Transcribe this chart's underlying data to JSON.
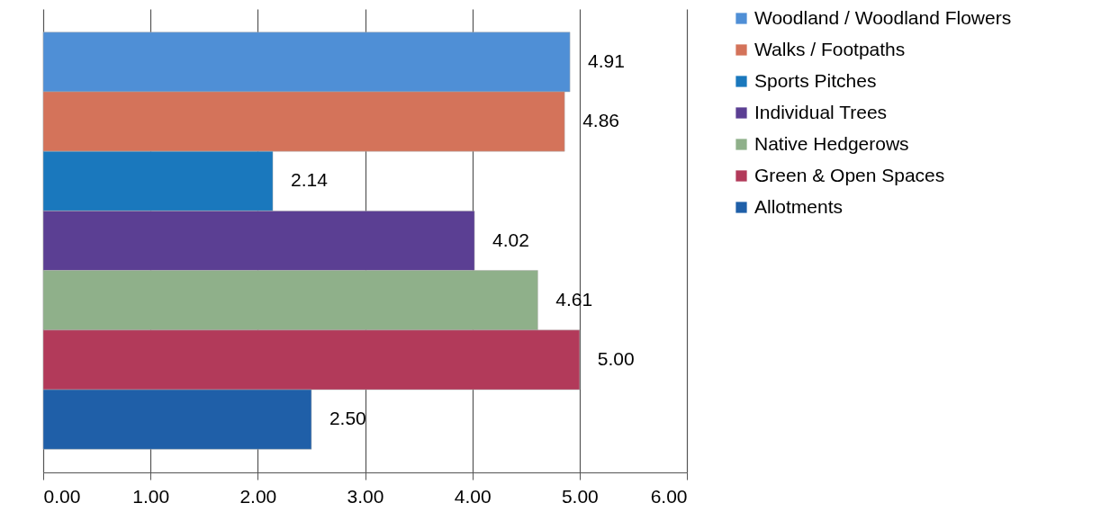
{
  "chart_data": {
    "type": "bar",
    "orientation": "horizontal",
    "categories": [
      null
    ],
    "series": [
      {
        "name": "Woodland / Woodland Flowers",
        "color": "#4f8fd6",
        "values": [
          4.91
        ],
        "value_labels": [
          "4.91"
        ]
      },
      {
        "name": "Walks / Footpaths",
        "color": "#d4735a",
        "values": [
          4.86
        ],
        "value_labels": [
          "4.86"
        ]
      },
      {
        "name": "Sports Pitches",
        "color": "#1a78bd",
        "values": [
          2.14
        ],
        "value_labels": [
          "2.14"
        ]
      },
      {
        "name": "Individual Trees",
        "color": "#5b3f93",
        "values": [
          4.02
        ],
        "value_labels": [
          "4.02"
        ]
      },
      {
        "name": "Native Hedgerows",
        "color": "#8fb08a",
        "values": [
          4.61
        ],
        "value_labels": [
          "4.61"
        ]
      },
      {
        "name": "Green & Open Spaces",
        "color": "#b23a5a",
        "values": [
          5.0
        ],
        "value_labels": [
          "5.00"
        ]
      },
      {
        "name": "Allotments",
        "color": "#1f5fa8",
        "values": [
          2.5
        ],
        "value_labels": [
          "2.50"
        ]
      }
    ],
    "xlim": [
      0,
      6
    ],
    "xticks": [
      {
        "value": 0,
        "label": "0.00"
      },
      {
        "value": 1,
        "label": "1.00"
      },
      {
        "value": 2,
        "label": "2.00"
      },
      {
        "value": 3,
        "label": "3.00"
      },
      {
        "value": 4,
        "label": "4.00"
      },
      {
        "value": 5,
        "label": "5.00"
      },
      {
        "value": 6,
        "label": "6.00"
      }
    ],
    "grid": "x",
    "legend": "right"
  }
}
